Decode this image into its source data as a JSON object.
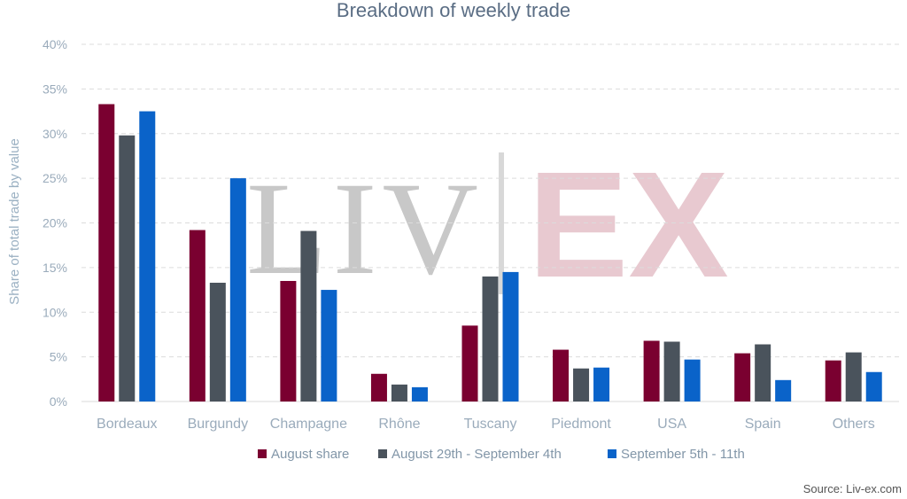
{
  "chart_data": {
    "type": "bar",
    "title": "Breakdown of weekly trade",
    "ylabel": "Share of total trade by value",
    "xlabel": "",
    "categories": [
      "Bordeaux",
      "Burgundy",
      "Champagne",
      "Rhône",
      "Tuscany",
      "Piedmont",
      "USA",
      "Spain",
      "Others"
    ],
    "series": [
      {
        "name": "August share",
        "color": "#7a0030",
        "values": [
          33.3,
          19.2,
          13.5,
          3.1,
          8.5,
          5.8,
          6.8,
          5.4,
          4.6
        ]
      },
      {
        "name": "August 29th - September 4th",
        "color": "#4a535c",
        "values": [
          29.8,
          13.3,
          19.1,
          1.9,
          14.0,
          3.7,
          6.7,
          6.4,
          5.5
        ]
      },
      {
        "name": "September 5th  - 11th",
        "color": "#0a63c9",
        "values": [
          32.5,
          25.0,
          12.5,
          1.6,
          14.5,
          3.8,
          4.7,
          2.4,
          3.3
        ]
      }
    ],
    "ylim": [
      0,
      40
    ],
    "yticks": [
      "0%",
      "5%",
      "10%",
      "15%",
      "20%",
      "25%",
      "30%",
      "35%",
      "40%"
    ],
    "grid": true,
    "legend": "bottom",
    "watermark_left": "LIV",
    "watermark_right": "EX",
    "source": "Source: Liv-ex.com"
  }
}
